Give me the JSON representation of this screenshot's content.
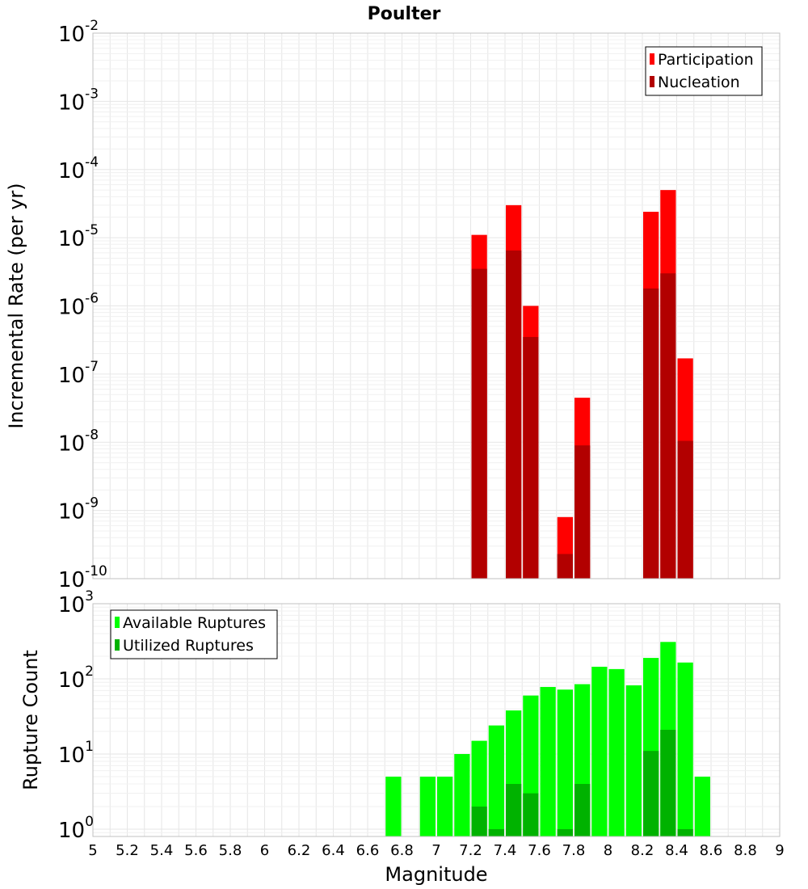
{
  "chart_data": [
    {
      "type": "bar",
      "title": "Poulter",
      "ylabel": "Incremental Rate (per yr)",
      "xlabel": "",
      "yscale": "log",
      "ylim": [
        1e-10,
        0.01
      ],
      "xlim": [
        5,
        9
      ],
      "y_tick_labels": [
        {
          "base": "10",
          "exp": "-10"
        },
        {
          "base": "10",
          "exp": "-9"
        },
        {
          "base": "10",
          "exp": "-8"
        },
        {
          "base": "10",
          "exp": "-7"
        },
        {
          "base": "10",
          "exp": "-6"
        },
        {
          "base": "10",
          "exp": "-5"
        },
        {
          "base": "10",
          "exp": "-4"
        },
        {
          "base": "10",
          "exp": "-3"
        },
        {
          "base": "10",
          "exp": "-2"
        }
      ],
      "legend_position": "top-right",
      "series": [
        {
          "name": "Participation",
          "color": "#ff0000",
          "points": [
            {
              "x": 7.25,
              "y": 1.1e-05
            },
            {
              "x": 7.45,
              "y": 3e-05
            },
            {
              "x": 7.55,
              "y": 1e-06
            },
            {
              "x": 7.75,
              "y": 8e-10
            },
            {
              "x": 7.85,
              "y": 4.5e-08
            },
            {
              "x": 8.25,
              "y": 2.4e-05
            },
            {
              "x": 8.35,
              "y": 5e-05
            },
            {
              "x": 8.45,
              "y": 1.7e-07
            }
          ]
        },
        {
          "name": "Nucleation",
          "color": "#b20000",
          "points": [
            {
              "x": 7.25,
              "y": 3.5e-06
            },
            {
              "x": 7.45,
              "y": 6.5e-06
            },
            {
              "x": 7.55,
              "y": 3.5e-07
            },
            {
              "x": 7.75,
              "y": 2.3e-10
            },
            {
              "x": 7.85,
              "y": 9e-09
            },
            {
              "x": 8.25,
              "y": 1.8e-06
            },
            {
              "x": 8.35,
              "y": 3e-06
            },
            {
              "x": 8.45,
              "y": 1.05e-08
            }
          ]
        }
      ]
    },
    {
      "type": "bar",
      "title": "",
      "ylabel": "Rupture Count",
      "xlabel": "Magnitude",
      "yscale": "log",
      "ylim": [
        0.8,
        1000
      ],
      "xlim": [
        5,
        9
      ],
      "y_tick_labels": [
        {
          "base": "10",
          "exp": "0"
        },
        {
          "base": "10",
          "exp": "1"
        },
        {
          "base": "10",
          "exp": "2"
        },
        {
          "base": "10",
          "exp": "3"
        }
      ],
      "x_tick_labels": [
        "5",
        "5.2",
        "5.4",
        "5.6",
        "5.8",
        "6",
        "6.2",
        "6.4",
        "6.6",
        "6.8",
        "7",
        "7.2",
        "7.4",
        "7.6",
        "7.8",
        "8",
        "8.2",
        "8.4",
        "8.6",
        "8.8",
        "9"
      ],
      "legend_position": "top-left",
      "series": [
        {
          "name": "Available Ruptures",
          "color": "#00ff00",
          "points": [
            {
              "x": 6.75,
              "y": 5
            },
            {
              "x": 6.95,
              "y": 5
            },
            {
              "x": 7.05,
              "y": 5
            },
            {
              "x": 7.15,
              "y": 10
            },
            {
              "x": 7.25,
              "y": 15
            },
            {
              "x": 7.35,
              "y": 24
            },
            {
              "x": 7.45,
              "y": 38
            },
            {
              "x": 7.55,
              "y": 60
            },
            {
              "x": 7.65,
              "y": 78
            },
            {
              "x": 7.75,
              "y": 72
            },
            {
              "x": 7.85,
              "y": 85
            },
            {
              "x": 7.95,
              "y": 145
            },
            {
              "x": 8.05,
              "y": 135
            },
            {
              "x": 8.15,
              "y": 82
            },
            {
              "x": 8.25,
              "y": 190
            },
            {
              "x": 8.35,
              "y": 310
            },
            {
              "x": 8.45,
              "y": 165
            },
            {
              "x": 8.55,
              "y": 5
            }
          ]
        },
        {
          "name": "Utilized Ruptures",
          "color": "#00b200",
          "points": [
            {
              "x": 7.25,
              "y": 2
            },
            {
              "x": 7.35,
              "y": 1
            },
            {
              "x": 7.45,
              "y": 4
            },
            {
              "x": 7.55,
              "y": 3
            },
            {
              "x": 7.75,
              "y": 1
            },
            {
              "x": 7.85,
              "y": 4
            },
            {
              "x": 8.25,
              "y": 11
            },
            {
              "x": 8.35,
              "y": 21
            },
            {
              "x": 8.45,
              "y": 1
            }
          ]
        }
      ]
    }
  ]
}
